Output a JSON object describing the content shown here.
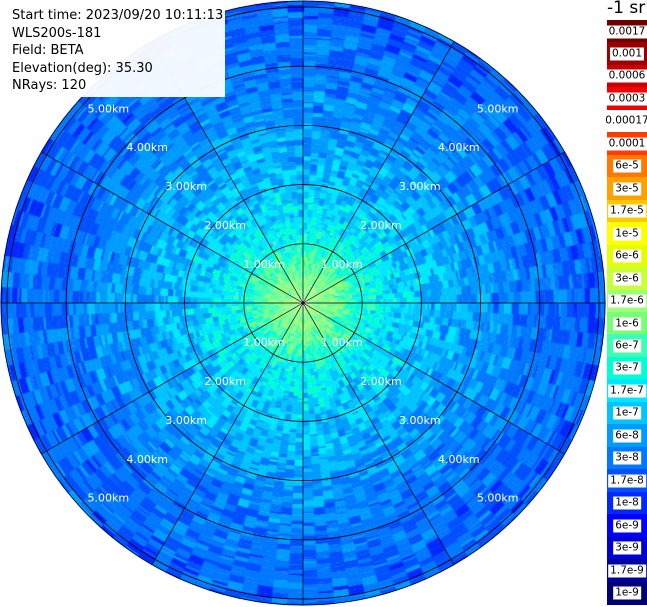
{
  "info": {
    "start_time": "Start time: 2023/09/20 10:11:13",
    "site": "WLS200s-181",
    "field": "Field: BETA",
    "elevation": "Elevation(deg): 35.30",
    "nrays": "NRays: 120"
  },
  "colorbar": {
    "unit": "-1 sr",
    "labels": [
      "0.0017",
      "0.001",
      "0.0006",
      "0.0003",
      "0.00017",
      "0.0001",
      "6e-5",
      "3e-5",
      "1.7e-5",
      "1e-5",
      "6e-6",
      "3e-6",
      "1.7e-6",
      "1e-6",
      "6e-7",
      "3e-7",
      "1.7e-7",
      "1e-7",
      "6e-8",
      "3e-8",
      "1.7e-8",
      "1e-8",
      "6e-9",
      "3e-9",
      "1.7e-9",
      "1e-9"
    ],
    "colors": [
      "#6d0000",
      "#9a0000",
      "#c80000",
      "#f00000",
      "#ffffff",
      "#ff3c00",
      "#ff7800",
      "#ffa000",
      "#ffc800",
      "#ffff00",
      "#e6ff00",
      "#c8ff3c",
      "#a0ff78",
      "#78ff78",
      "#3cffb4",
      "#00ffd2",
      "#00e6ff",
      "#00c3ff",
      "#009bff",
      "#0078ff",
      "#0050ff",
      "#0028ff",
      "#0000ff",
      "#0000d2",
      "#0000a0",
      "#000070"
    ]
  },
  "chart_data": {
    "type": "heatmap",
    "projection": "polar-ppi",
    "range_rings_km": [
      1,
      2,
      3,
      4,
      5
    ],
    "max_range_km": 5.1,
    "azimuth_spoke_deg": [
      0,
      30,
      60,
      90,
      120,
      150,
      180,
      210,
      240,
      270,
      300,
      330
    ],
    "range_labels": [
      "1.00km",
      "2.00km",
      "3.00km",
      "4.00km",
      "5.00km"
    ],
    "nrays": 120,
    "field": "BETA",
    "elevation_deg": 35.3,
    "value_profile": [
      {
        "range_km": 0.0,
        "value": 2e-06
      },
      {
        "range_km": 0.5,
        "value": 1.2e-06
      },
      {
        "range_km": 1.0,
        "value": 4e-07
      },
      {
        "range_km": 1.5,
        "value": 2e-07
      },
      {
        "range_km": 2.0,
        "value": 1.4e-07
      },
      {
        "range_km": 3.0,
        "value": 7e-08
      },
      {
        "range_km": 4.0,
        "value": 4e-08
      },
      {
        "range_km": 5.0,
        "value": 3e-08
      }
    ]
  }
}
